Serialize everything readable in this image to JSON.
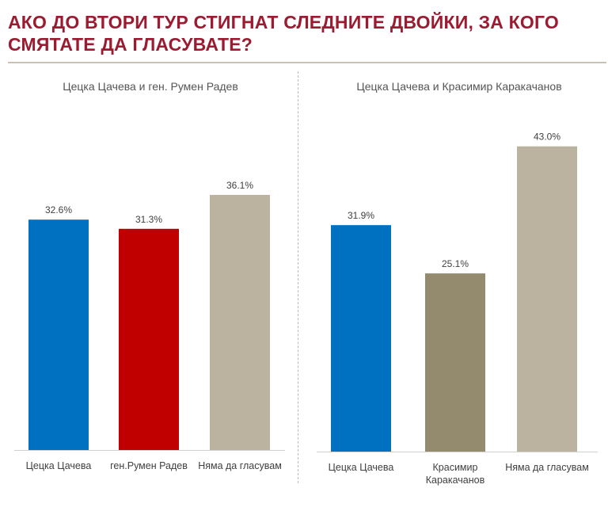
{
  "title": "АКО ДО ВТОРИ ТУР СТИГНАТ СЛЕДНИТЕ ДВОЙКИ, ЗА КОГО СМЯТАТЕ ДА ГЛАСУВАТЕ?",
  "chart_data": [
    {
      "type": "bar",
      "title": "Цецка Цачева и ген. Румен Радев",
      "categories": [
        "Цецка Цачева",
        "ген.Румен Радев",
        "Няма да гласувам"
      ],
      "values": [
        32.6,
        31.3,
        36.1
      ],
      "value_labels": [
        "32.6%",
        "31.3%",
        "36.1%"
      ],
      "colors": [
        "#0070c0",
        "#c00000",
        "#bbb3a0"
      ],
      "ylim": [
        0,
        50
      ],
      "xlabel": "",
      "ylabel": "",
      "grid": false
    },
    {
      "type": "bar",
      "title": "Цецка Цачева и Красимир Каракачанов",
      "categories": [
        "Цецка Цачева",
        "Красимир Каракачанов",
        "Няма да гласувам"
      ],
      "category_lines": [
        [
          "Цецка Цачева"
        ],
        [
          "Красимир",
          "Каракачанов"
        ],
        [
          "Няма да гласувам"
        ]
      ],
      "values": [
        31.9,
        25.1,
        43.0
      ],
      "value_labels": [
        "31.9%",
        "25.1%",
        "43.0%"
      ],
      "colors": [
        "#0070c0",
        "#948a6e",
        "#bbb3a0"
      ],
      "ylim": [
        0,
        50
      ],
      "xlabel": "",
      "ylabel": "",
      "grid": false
    }
  ]
}
